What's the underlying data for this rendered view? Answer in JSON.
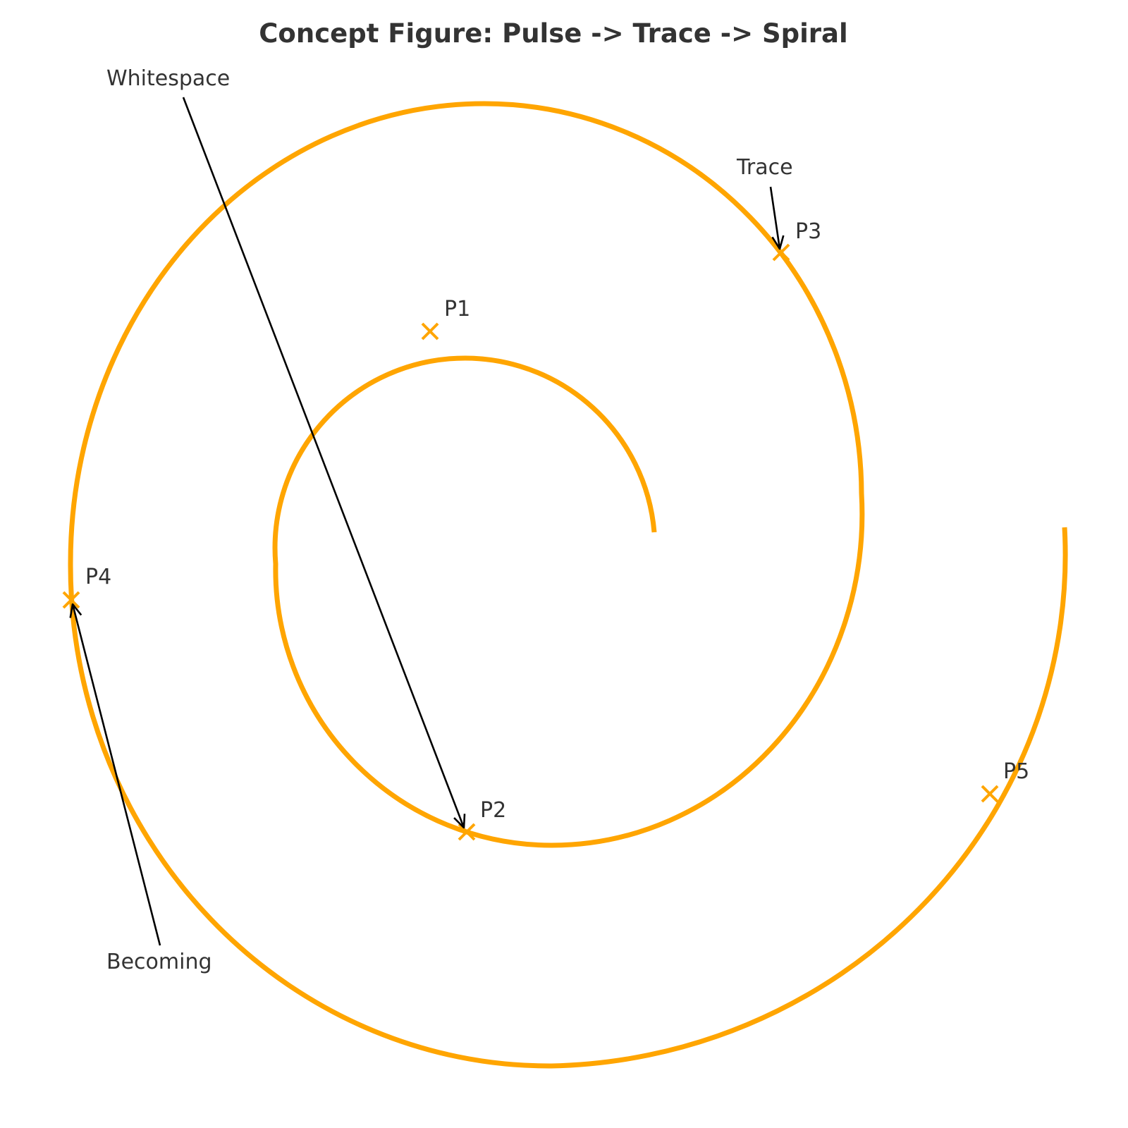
{
  "title": "Concept Figure: Pulse -> Trace -> Spiral",
  "colors": {
    "spiral": "#ffa500",
    "text": "#333333",
    "arrow": "#000000",
    "background": "#ffffff"
  },
  "points": [
    {
      "label": "P1"
    },
    {
      "label": "P2"
    },
    {
      "label": "P3"
    },
    {
      "label": "P4"
    },
    {
      "label": "P5"
    }
  ],
  "annotations": [
    {
      "label": "Whitespace",
      "target": "P2"
    },
    {
      "label": "Trace",
      "target": "P3"
    },
    {
      "label": "Becoming",
      "target": "P4"
    }
  ]
}
